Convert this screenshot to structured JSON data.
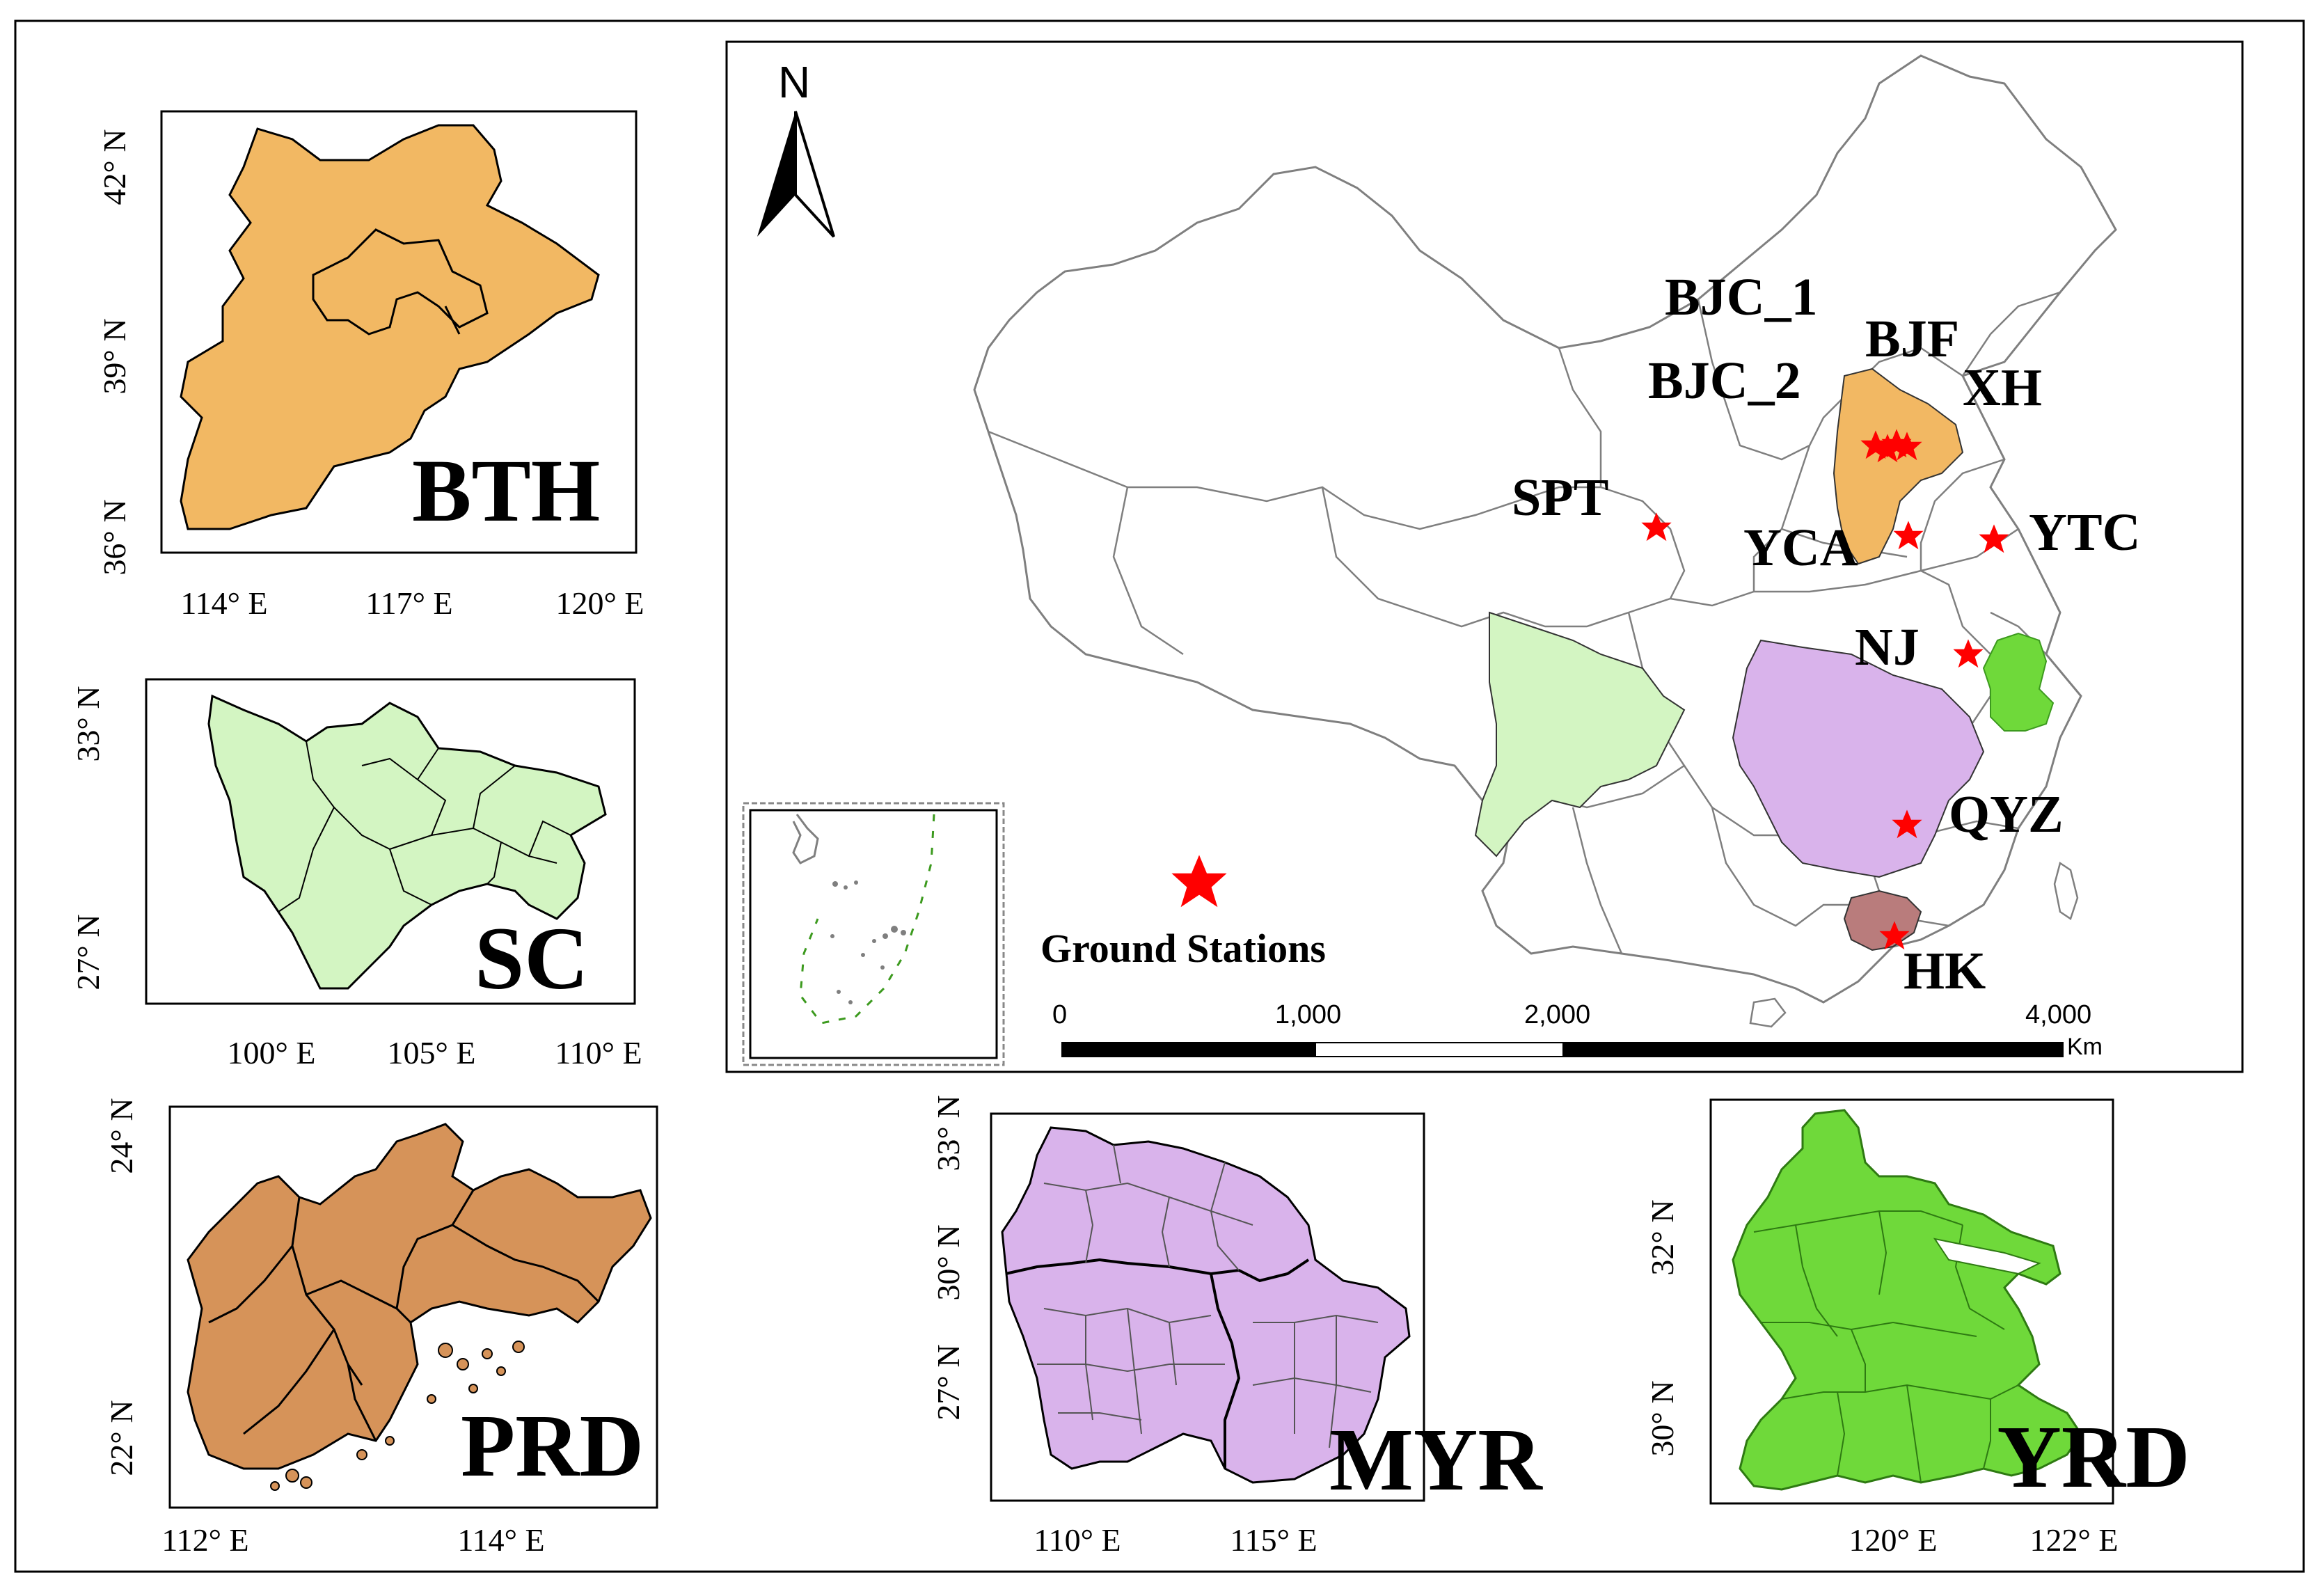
{
  "colors": {
    "frame": "#000000",
    "bth": "#f2b863",
    "sc": "#d3f5c2",
    "prd": "#d69359",
    "myr": "#d9b3eb",
    "yrd": "#6fd93a",
    "hk": "#b97c7c",
    "border_gray": "#7f7f7f",
    "star": "#ff0000"
  },
  "icons": {
    "north_arrow": "north-arrow-icon",
    "station": "star-icon"
  },
  "main_map": {
    "north_label": "N",
    "legend_label": "Ground Stations",
    "scale_bar": {
      "ticks": [
        "0",
        "1,000",
        "2,000",
        "4,000"
      ],
      "unit": "Km"
    },
    "stations": [
      {
        "label": "BJC_1"
      },
      {
        "label": "BJF"
      },
      {
        "label": "BJC_2"
      },
      {
        "label": "XH"
      },
      {
        "label": "SPT"
      },
      {
        "label": "YCA"
      },
      {
        "label": "YTC"
      },
      {
        "label": "NJ"
      },
      {
        "label": "QYZ"
      },
      {
        "label": "HK"
      }
    ]
  },
  "insets": {
    "bth": {
      "label": "BTH",
      "y_ticks": [
        "42° N",
        "39° N",
        "36° N"
      ],
      "x_ticks": [
        "114° E",
        "117° E",
        "120° E"
      ]
    },
    "sc": {
      "label": "SC",
      "y_ticks": [
        "33° N",
        "27° N"
      ],
      "x_ticks": [
        "100° E",
        "105° E",
        "110° E"
      ]
    },
    "prd": {
      "label": "PRD",
      "y_ticks": [
        "24° N",
        "22° N"
      ],
      "x_ticks": [
        "112° E",
        "114° E"
      ]
    },
    "myr": {
      "label": "MYR",
      "y_ticks": [
        "33° N",
        "30° N",
        "27° N"
      ],
      "x_ticks": [
        "110° E",
        "115° E"
      ]
    },
    "yrd": {
      "label": "YRD",
      "y_ticks": [
        "32° N",
        "30° N"
      ],
      "x_ticks": [
        "120° E",
        "122° E"
      ]
    }
  }
}
